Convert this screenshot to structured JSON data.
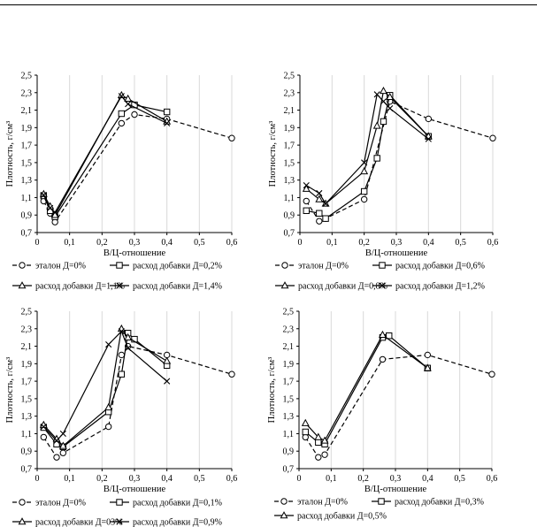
{
  "chart_data": [
    {
      "type": "line",
      "xlabel": "В/Ц-отношение",
      "ylabel": "Плотность, г/см³",
      "xlim": [
        0,
        0.6
      ],
      "ylim": [
        0.7,
        2.5
      ],
      "xticks": [
        "0",
        "0,1",
        "0,2",
        "0,3",
        "0,4",
        "0,5",
        "0,6"
      ],
      "yticks": [
        "0,7",
        "0,9",
        "1,1",
        "1,3",
        "1,5",
        "1,7",
        "1,9",
        "2,1",
        "2,3",
        "2,5"
      ],
      "grid": "vertical",
      "legend": "bottom",
      "series": [
        {
          "name": "эталон Д=0%",
          "marker": "circle",
          "dash": true,
          "x": [
            0.02,
            0.04,
            0.055,
            0.26,
            0.3,
            0.4,
            0.6
          ],
          "y": [
            1.06,
            0.92,
            0.82,
            1.95,
            2.05,
            2.0,
            1.78
          ]
        },
        {
          "name": "расход добавки Д=0,2%",
          "marker": "square",
          "dash": false,
          "x": [
            0.02,
            0.04,
            0.055,
            0.26,
            0.3,
            0.4
          ],
          "y": [
            1.12,
            0.95,
            0.88,
            2.06,
            2.16,
            2.08
          ]
        },
        {
          "name": "расход добавки Д=1,1%",
          "marker": "triangle",
          "dash": false,
          "x": [
            0.02,
            0.04,
            0.055,
            0.26,
            0.28,
            0.4
          ],
          "y": [
            1.14,
            1.0,
            0.9,
            2.27,
            2.23,
            1.97
          ]
        },
        {
          "name": "расход добавки Д=1,4%",
          "marker": "x",
          "dash": false,
          "x": [
            0.02,
            0.04,
            0.055,
            0.26,
            0.28,
            0.4
          ],
          "y": [
            1.13,
            0.98,
            0.93,
            2.26,
            2.17,
            1.95
          ]
        }
      ]
    },
    {
      "type": "line",
      "xlabel": "В/Ц-отношение",
      "ylabel": "Плотность, г/см³",
      "xlim": [
        0,
        0.6
      ],
      "ylim": [
        0.7,
        2.5
      ],
      "xticks": [
        "0",
        "0,1",
        "0,2",
        "0,3",
        "0,4",
        "0,5",
        "0,6"
      ],
      "yticks": [
        "0,7",
        "0,9",
        "1,1",
        "1,3",
        "1,5",
        "1,7",
        "1,9",
        "2,1",
        "2,3",
        "2,5"
      ],
      "grid": "vertical",
      "legend": "bottom",
      "series": [
        {
          "name": "эталон Д=0%",
          "marker": "circle",
          "dash": true,
          "x": [
            0.02,
            0.06,
            0.08,
            0.2,
            0.28,
            0.4,
            0.6
          ],
          "y": [
            1.06,
            0.83,
            0.86,
            1.08,
            2.2,
            2.0,
            1.78
          ]
        },
        {
          "name": "расход добавки Д=0,6%",
          "marker": "square",
          "dash": false,
          "x": [
            0.02,
            0.06,
            0.08,
            0.2,
            0.24,
            0.26,
            0.28,
            0.4
          ],
          "y": [
            0.95,
            0.92,
            0.86,
            1.17,
            1.55,
            1.97,
            2.27,
            1.8
          ]
        },
        {
          "name": "расход добавки Д=0,8%",
          "marker": "triangle",
          "dash": false,
          "x": [
            0.02,
            0.06,
            0.08,
            0.2,
            0.24,
            0.26,
            0.28,
            0.4
          ],
          "y": [
            1.2,
            1.08,
            1.03,
            1.4,
            1.92,
            2.32,
            2.25,
            1.8
          ]
        },
        {
          "name": "расход добавки Д=1,2%",
          "marker": "x",
          "dash": false,
          "x": [
            0.02,
            0.06,
            0.08,
            0.2,
            0.24,
            0.26,
            0.28,
            0.4
          ],
          "y": [
            1.24,
            1.15,
            1.03,
            1.5,
            2.28,
            2.2,
            2.12,
            1.77
          ]
        }
      ]
    },
    {
      "type": "line",
      "xlabel": "В/Ц-отношение",
      "ylabel": "Плотность, г/см³",
      "xlim": [
        0,
        0.6
      ],
      "ylim": [
        0.7,
        2.5
      ],
      "xticks": [
        "0",
        "0,1",
        "0,2",
        "0,3",
        "0,4",
        "0,5",
        "0,6"
      ],
      "yticks": [
        "0,7",
        "0,9",
        "1,1",
        "1,3",
        "1,5",
        "1,7",
        "1,9",
        "2,1",
        "2,3",
        "2,5"
      ],
      "grid": "vertical",
      "legend": "bottom",
      "series": [
        {
          "name": "эталон Д=0%",
          "marker": "circle",
          "dash": true,
          "x": [
            0.02,
            0.06,
            0.08,
            0.22,
            0.26,
            0.28,
            0.4,
            0.6
          ],
          "y": [
            1.06,
            0.83,
            0.88,
            1.18,
            2.0,
            2.1,
            2.0,
            1.78
          ]
        },
        {
          "name": "расход добавки Д=0,1%",
          "marker": "square",
          "dash": false,
          "x": [
            0.02,
            0.06,
            0.08,
            0.22,
            0.26,
            0.28,
            0.3,
            0.4
          ],
          "y": [
            1.17,
            0.98,
            0.95,
            1.35,
            1.78,
            2.25,
            2.18,
            1.88
          ]
        },
        {
          "name": "расход добавки Д=03%",
          "marker": "triangle",
          "dash": false,
          "x": [
            0.02,
            0.06,
            0.08,
            0.22,
            0.26,
            0.28,
            0.4
          ],
          "y": [
            1.2,
            1.04,
            0.96,
            1.4,
            2.3,
            2.2,
            1.93
          ]
        },
        {
          "name": "расход добавки Д=0,9%",
          "marker": "x",
          "dash": false,
          "x": [
            0.02,
            0.06,
            0.08,
            0.22,
            0.26,
            0.28,
            0.4
          ],
          "y": [
            1.18,
            1.02,
            1.1,
            2.12,
            2.27,
            2.08,
            1.7
          ]
        }
      ]
    },
    {
      "type": "line",
      "xlabel": "В/Ц-отношение",
      "ylabel": "Плотность, г/см³",
      "xlim": [
        0,
        0.6
      ],
      "ylim": [
        0.7,
        2.5
      ],
      "xticks": [
        "0",
        "0,1",
        "0,2",
        "0,3",
        "0,4",
        "0,5",
        "0,6"
      ],
      "yticks": [
        "0,7",
        "0,9",
        "1,1",
        "1,3",
        "1,5",
        "1,7",
        "1,9",
        "2,1",
        "2,3",
        "2,5"
      ],
      "grid": "vertical",
      "legend": "bottom",
      "series": [
        {
          "name": "эталон Д=0%",
          "marker": "circle",
          "dash": true,
          "x": [
            0.02,
            0.06,
            0.08,
            0.26,
            0.4,
            0.6
          ],
          "y": [
            1.06,
            0.83,
            0.86,
            1.95,
            2.0,
            1.78
          ]
        },
        {
          "name": "расход добавки Д=0,3%",
          "marker": "square",
          "dash": false,
          "x": [
            0.02,
            0.06,
            0.08,
            0.26,
            0.28,
            0.4
          ],
          "y": [
            1.12,
            1.0,
            0.98,
            2.2,
            2.22,
            1.85
          ]
        },
        {
          "name": "расход добавки Д=0,5%",
          "marker": "triangle",
          "dash": false,
          "x": [
            0.02,
            0.06,
            0.08,
            0.26,
            0.4
          ],
          "y": [
            1.22,
            1.06,
            1.02,
            2.23,
            1.85
          ]
        }
      ]
    }
  ]
}
